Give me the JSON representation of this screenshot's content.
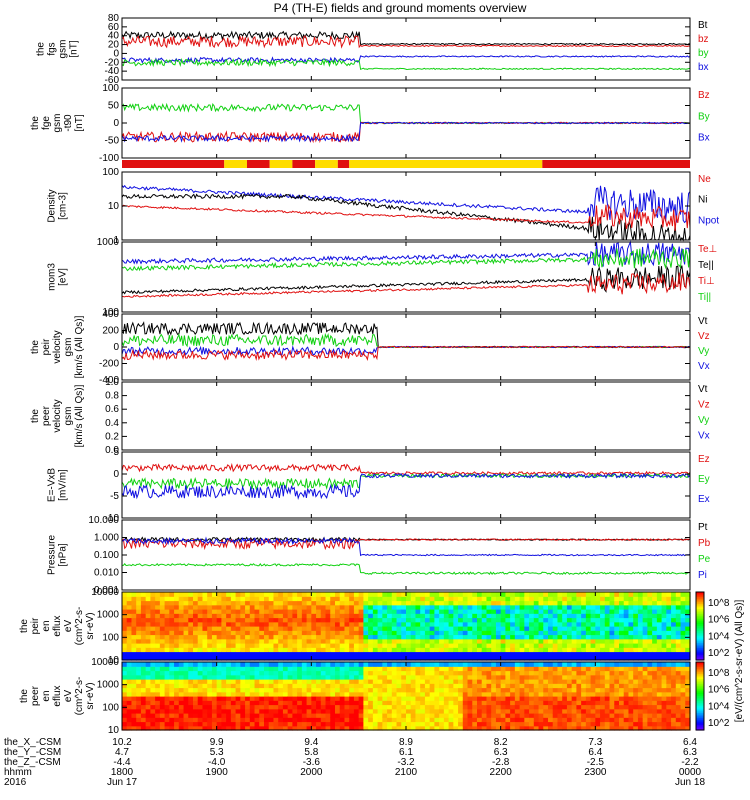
{
  "title": "P4 (TH-E) fields and ground moments overview",
  "colors": {
    "black": "#000000",
    "red": "#e01010",
    "green": "#10d010",
    "blue": "#1010e0"
  },
  "chart_data": [
    {
      "type": "line",
      "ylabel": [
        "the",
        "fgs",
        "gsm",
        "[nT]"
      ],
      "ytick_labels": [
        "80",
        "60",
        "40",
        "20",
        "0",
        "-20",
        "-40",
        "-60"
      ],
      "legend": [
        {
          "name": "Bt",
          "color": "black"
        },
        {
          "name": "bz",
          "color": "red"
        },
        {
          "name": "by",
          "color": "green"
        },
        {
          "name": "bx",
          "color": "blue"
        }
      ]
    },
    {
      "type": "line",
      "ylabel": [
        "the",
        "fge",
        "gsm",
        "-t90",
        "[nT]"
      ],
      "ytick_labels": [
        "100",
        "50",
        "0",
        "-50",
        "-100"
      ],
      "legend": [
        {
          "name": "Bz",
          "color": "red"
        },
        {
          "name": "By",
          "color": "green"
        },
        {
          "name": "Bx",
          "color": "blue"
        }
      ]
    },
    {
      "type": "bar",
      "ylabel": [],
      "note": "mode bar"
    },
    {
      "type": "line",
      "ylabel": [
        "Density",
        "[cm-3]"
      ],
      "ytick_labels": [
        "100",
        "10",
        "1"
      ],
      "legend": [
        {
          "name": "Ne",
          "color": "red"
        },
        {
          "name": "Ni",
          "color": "black"
        },
        {
          "name": "Npot",
          "color": "blue"
        }
      ]
    },
    {
      "type": "line",
      "ylabel": [
        "mom3",
        "[eV]"
      ],
      "ytick_labels": [
        "1000",
        "100"
      ],
      "legend": [
        {
          "name": "Te⊥",
          "color": "red"
        },
        {
          "name": "Te||",
          "color": "black"
        },
        {
          "name": "Ti⊥",
          "color": "red"
        },
        {
          "name": "Ti||",
          "color": "green"
        }
      ]
    },
    {
      "type": "line",
      "ylabel": [
        "the",
        "peir",
        "velocity",
        "gsm",
        "[km/s (All Qs)]"
      ],
      "ytick_labels": [
        "400",
        "200",
        "0",
        "-200",
        "-400"
      ],
      "legend": [
        {
          "name": "Vt",
          "color": "black"
        },
        {
          "name": "Vz",
          "color": "red"
        },
        {
          "name": "Vy",
          "color": "green"
        },
        {
          "name": "Vx",
          "color": "blue"
        }
      ]
    },
    {
      "type": "line",
      "ylabel": [
        "the",
        "peer",
        "velocity",
        "gsm",
        "[km/s (All Qs)]"
      ],
      "ytick_labels": [
        "1.0",
        "0.8",
        "0.6",
        "0.4",
        "0.2",
        "0.0"
      ],
      "legend": [
        {
          "name": "Vt",
          "color": "black"
        },
        {
          "name": "Vz",
          "color": "red"
        },
        {
          "name": "Vy",
          "color": "green"
        },
        {
          "name": "Vx",
          "color": "blue"
        }
      ]
    },
    {
      "type": "line",
      "ylabel": [
        "E=-VxB",
        "[mV/m]"
      ],
      "ytick_labels": [
        "5",
        "0",
        "-5",
        "-10"
      ],
      "legend": [
        {
          "name": "Ez",
          "color": "red"
        },
        {
          "name": "Ey",
          "color": "green"
        },
        {
          "name": "Ex",
          "color": "blue"
        }
      ]
    },
    {
      "type": "line",
      "ylabel": [
        "Pressure",
        "[nPa]"
      ],
      "ytick_labels": [
        "10.000",
        "1.000",
        "0.100",
        "0.010",
        "0.001"
      ],
      "legend": [
        {
          "name": "Pt",
          "color": "black"
        },
        {
          "name": "Pb",
          "color": "red"
        },
        {
          "name": "Pe",
          "color": "green"
        },
        {
          "name": "Pi",
          "color": "blue"
        }
      ]
    },
    {
      "type": "heatmap",
      "ylabel": [
        "the",
        "peir",
        "en",
        "eflux",
        "eV",
        "(cm^2-s-",
        "sr-eV)"
      ],
      "ytick_labels": [
        "10000",
        "1000",
        "100",
        "10"
      ]
    },
    {
      "type": "heatmap",
      "ylabel": [
        "the",
        "peer",
        "en",
        "eflux",
        "eV",
        "(cm^2-s-",
        "sr-eV)"
      ],
      "ytick_labels": [
        "10000",
        "1000",
        "100",
        "10"
      ]
    }
  ],
  "colorbar": {
    "label": "[eV/(cm^2-s-sr-eV) (All Qs)]",
    "top_ticks": [
      "10^8",
      "10^6",
      "10^4",
      "10^2"
    ],
    "bottom_ticks": [
      "10^8",
      "10^6",
      "10^4",
      "10^2"
    ]
  },
  "xaxis": {
    "rows": [
      {
        "label": "the_X_-CSM",
        "values": [
          "10.2",
          "9.9",
          "9.4",
          "8.9",
          "8.2",
          "7.3",
          "6.4"
        ]
      },
      {
        "label": "the_Y_-CSM",
        "values": [
          "4.7",
          "5.3",
          "5.8",
          "6.1",
          "6.3",
          "6.4",
          "6.3"
        ]
      },
      {
        "label": "the_Z_-CSM",
        "values": [
          "-4.4",
          "-4.0",
          "-3.6",
          "-3.2",
          "-2.8",
          "-2.5",
          "-2.2"
        ]
      },
      {
        "label": "hhmm",
        "values": [
          "1800",
          "1900",
          "2000",
          "2100",
          "2200",
          "2300",
          "0000"
        ]
      },
      {
        "label": "2016",
        "values": [
          "Jun 17",
          "",
          "",
          "",
          "",
          "",
          "Jun 18"
        ]
      }
    ]
  }
}
